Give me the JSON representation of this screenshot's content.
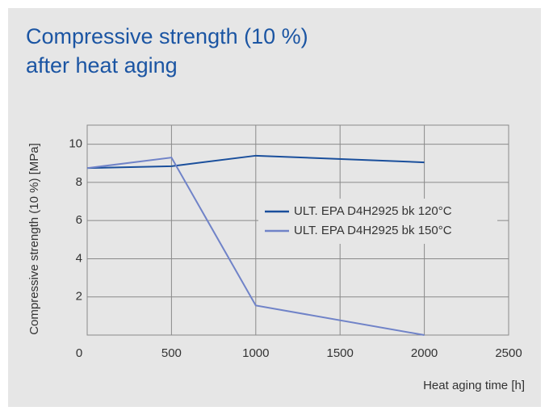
{
  "chart_data": {
    "type": "line",
    "title": [
      "Compressive strength (10 %)",
      "after heat aging"
    ],
    "x_label": "Heat aging time [h]",
    "y_label": "Compressive strength (10 %) [MPa]",
    "x": [
      0,
      500,
      1000,
      2000
    ],
    "series": [
      {
        "name": "ULT. EPA D4H2925 bk 120°C",
        "color": "#1a4f9c",
        "values": [
          8.75,
          8.85,
          9.4,
          9.05
        ]
      },
      {
        "name": "ULT. EPA D4H2925 bk 150°C",
        "color": "#7083c8",
        "values": [
          8.75,
          9.3,
          1.55,
          0.0
        ]
      }
    ],
    "xlim": [
      0,
      2500
    ],
    "xticks": [
      0,
      500,
      1000,
      1500,
      2000,
      2500
    ],
    "ylim": [
      0,
      11
    ],
    "yticks": [
      2,
      4,
      6,
      8,
      10
    ],
    "grid": true,
    "legend": "right"
  }
}
